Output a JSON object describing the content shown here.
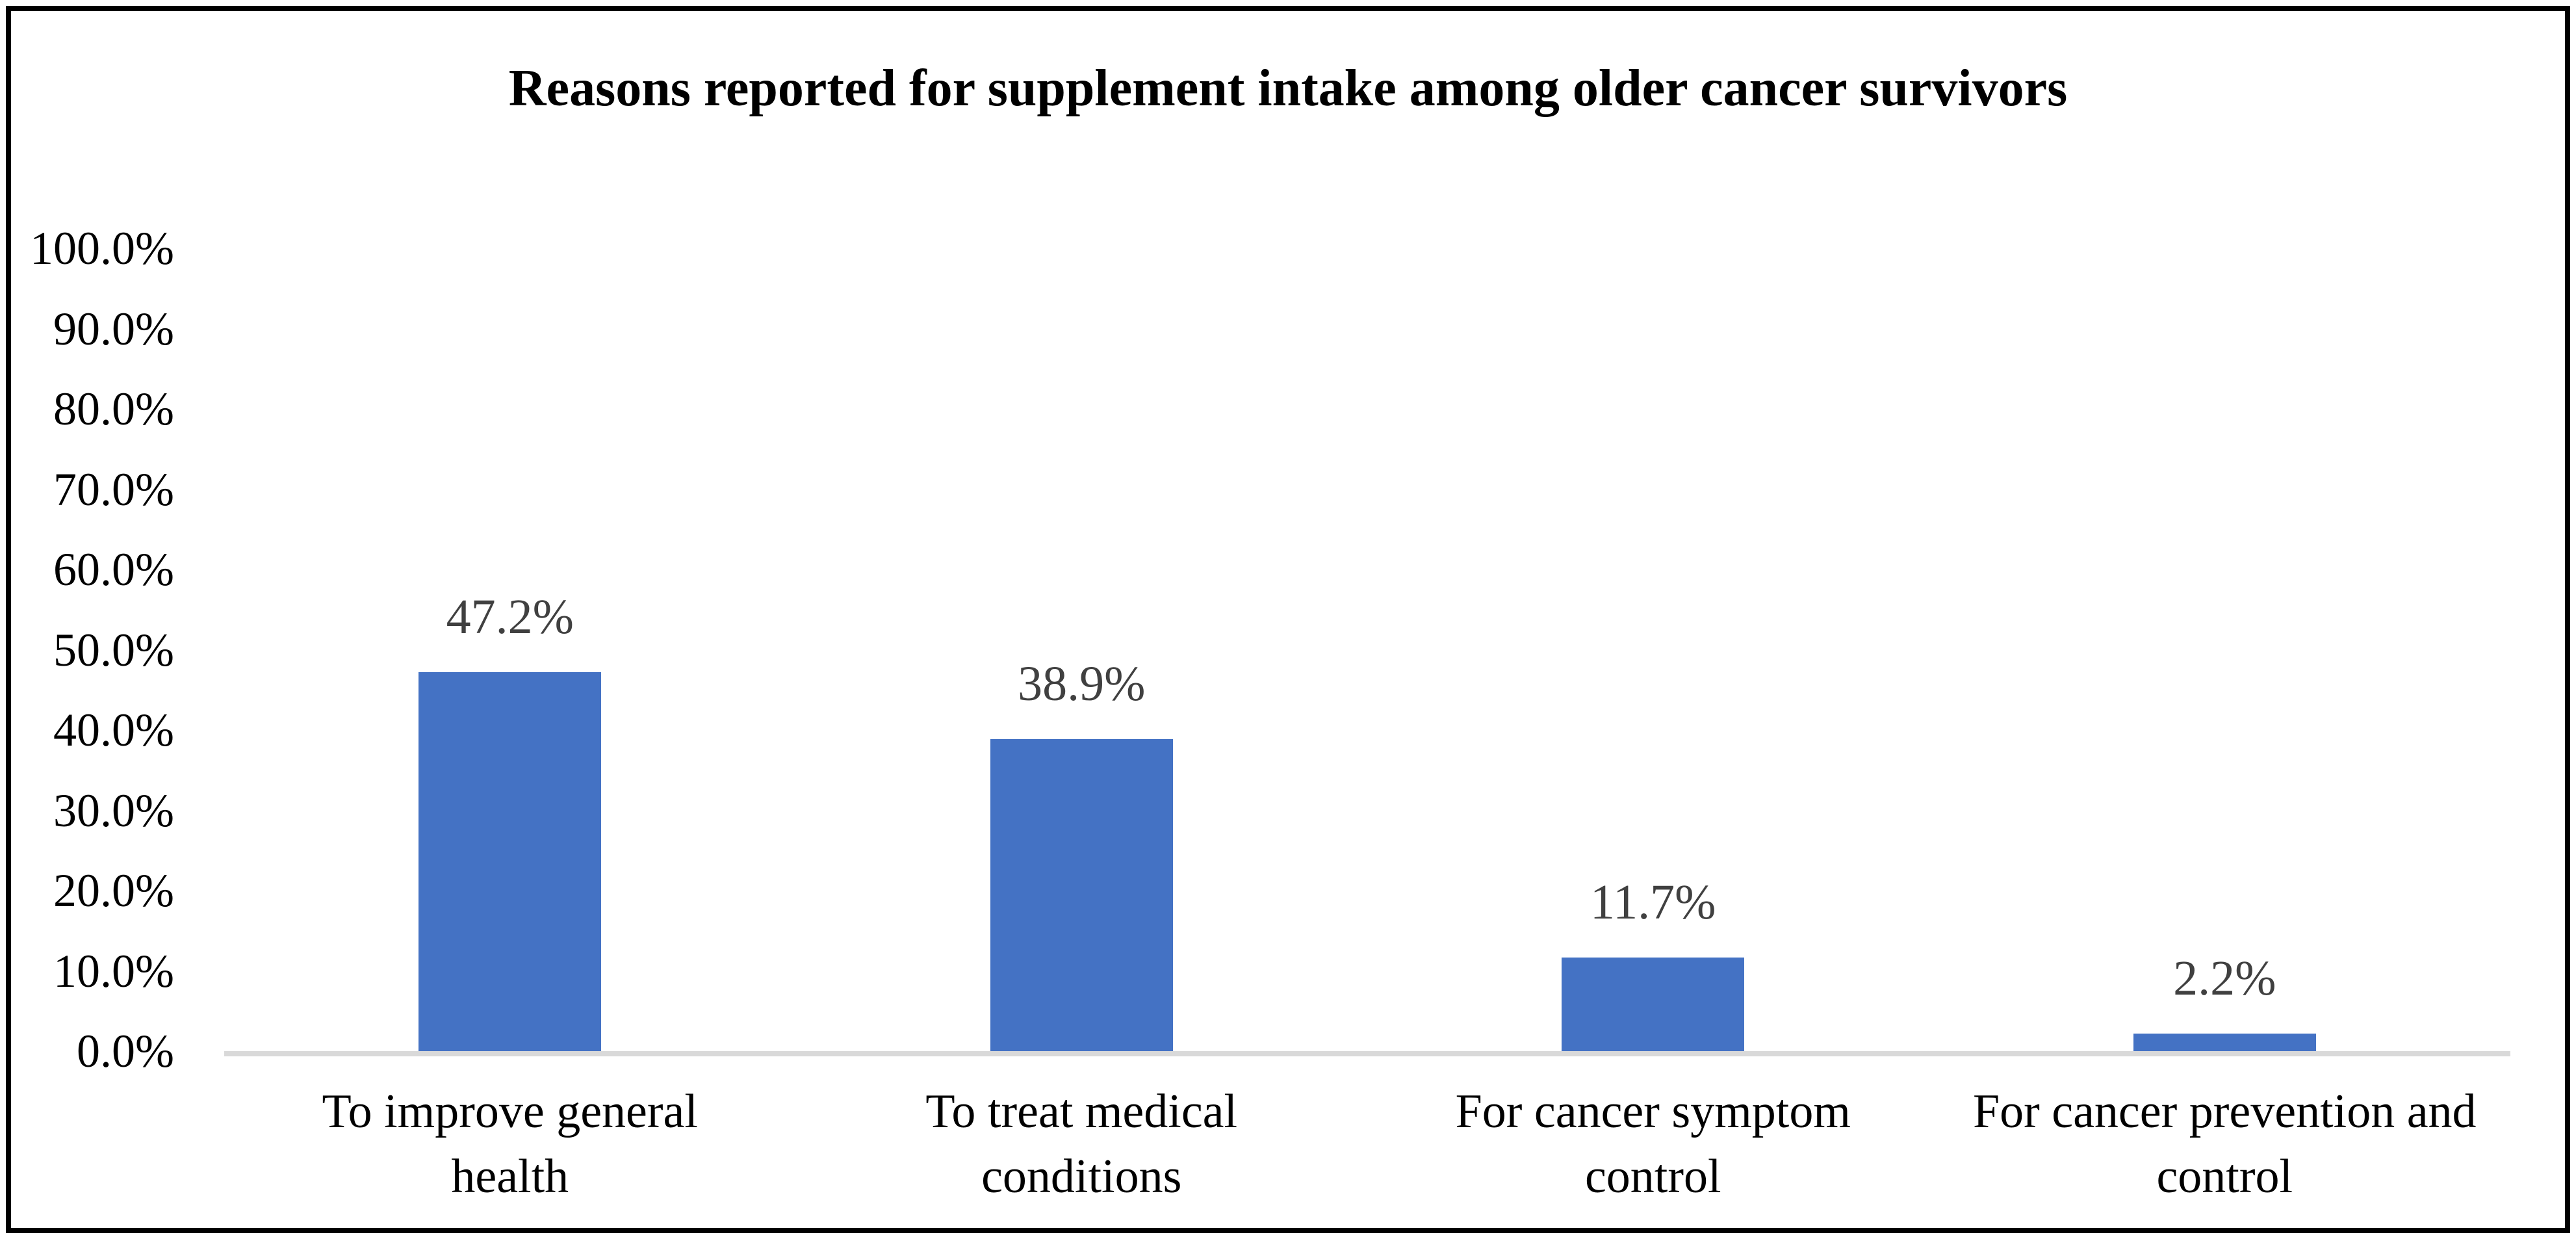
{
  "frame": {
    "border_color": "#000000",
    "background_color": "#ffffff"
  },
  "chart_data": {
    "type": "bar",
    "title": "Reasons reported for supplement intake among older cancer survivors",
    "categories": [
      "To improve general\nhealth",
      "To treat medical\nconditions",
      "For cancer symptom\ncontrol",
      "For cancer prevention and\ncontrol"
    ],
    "values": [
      47.2,
      38.9,
      11.7,
      2.2
    ],
    "data_labels": [
      "47.2%",
      "38.9%",
      "11.7%",
      "2.2%"
    ],
    "y_ticks": [
      "0.0%",
      "10.0%",
      "20.0%",
      "30.0%",
      "40.0%",
      "50.0%",
      "60.0%",
      "70.0%",
      "80.0%",
      "90.0%",
      "100.0%"
    ],
    "ylim": [
      0,
      100
    ],
    "xlabel": "",
    "ylabel": "",
    "grid": false,
    "legend": false,
    "bar_color": "#4472C4",
    "data_label_color": "#404040",
    "axis_text_color": "#000000",
    "baseline_color": "#D9D9D9"
  }
}
